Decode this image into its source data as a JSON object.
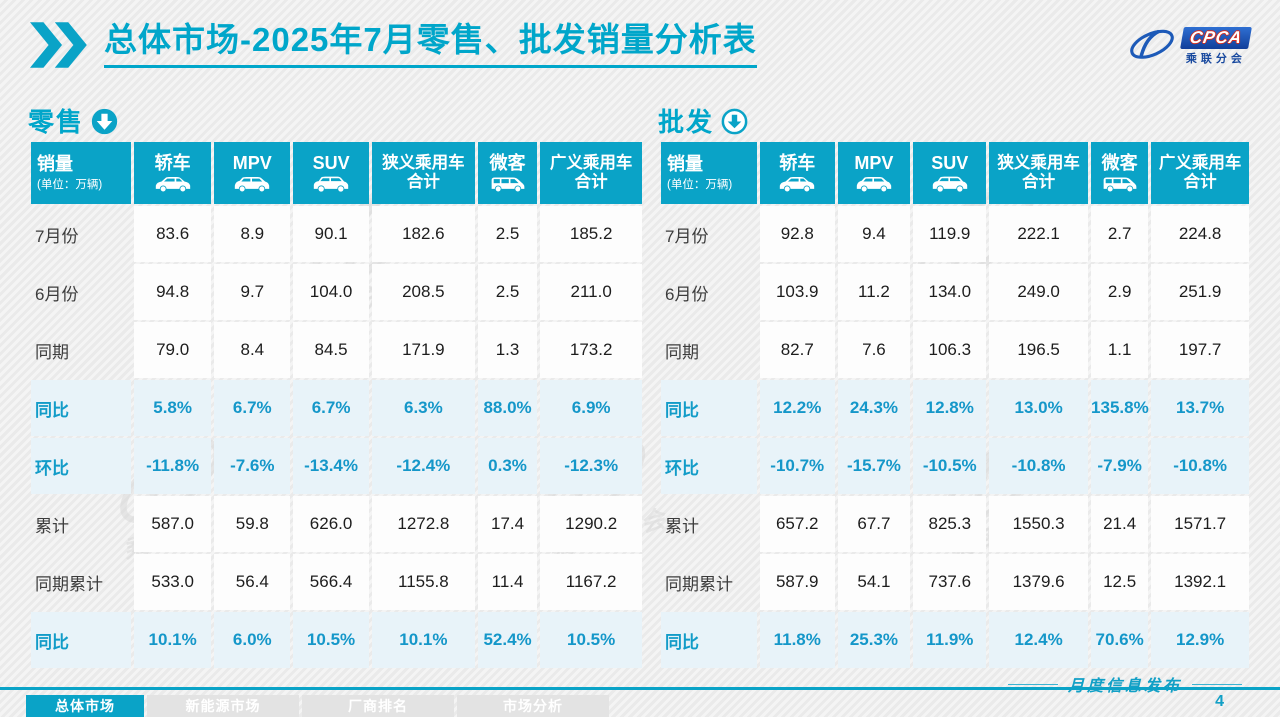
{
  "header": {
    "title_main": "总体市场",
    "title_rest": "-2025年7月零售、批发销量分析表"
  },
  "logo": {
    "acronym": "CPCA",
    "name": "乘联分会"
  },
  "colors": {
    "accent": "#0aa3c7",
    "highlight_bg": "#e8f3f9",
    "highlight_text": "#1597c9",
    "logo_blue": "#17489e"
  },
  "watermark": "乘联分会",
  "tables": {
    "columns": [
      {
        "title": "销量",
        "subtitle": "(单位：万辆)"
      },
      {
        "title": "轿车",
        "icon": "sedan-icon"
      },
      {
        "title": "MPV",
        "icon": "mpv-icon"
      },
      {
        "title": "SUV",
        "icon": "suv-icon"
      },
      {
        "title": "狭义乘用车",
        "title2": "合计"
      },
      {
        "title": "微客",
        "icon": "microvan-icon"
      },
      {
        "title": "广义乘用车",
        "title2": "合计"
      }
    ],
    "retail": {
      "section_label": "零售",
      "arrow_icon": "solid-down-arrow-icon",
      "rows": [
        {
          "label": "7月份",
          "highlight": false,
          "values": [
            "83.6",
            "8.9",
            "90.1",
            "182.6",
            "2.5",
            "185.2"
          ]
        },
        {
          "label": "6月份",
          "highlight": false,
          "values": [
            "94.8",
            "9.7",
            "104.0",
            "208.5",
            "2.5",
            "211.0"
          ]
        },
        {
          "label": "同期",
          "highlight": false,
          "values": [
            "79.0",
            "8.4",
            "84.5",
            "171.9",
            "1.3",
            "173.2"
          ]
        },
        {
          "label": "同比",
          "highlight": true,
          "values": [
            "5.8%",
            "6.7%",
            "6.7%",
            "6.3%",
            "88.0%",
            "6.9%"
          ]
        },
        {
          "label": "环比",
          "highlight": true,
          "values": [
            "-11.8%",
            "-7.6%",
            "-13.4%",
            "-12.4%",
            "0.3%",
            "-12.3%"
          ]
        },
        {
          "label": "累计",
          "highlight": false,
          "values": [
            "587.0",
            "59.8",
            "626.0",
            "1272.8",
            "17.4",
            "1290.2"
          ]
        },
        {
          "label": "同期累计",
          "highlight": false,
          "values": [
            "533.0",
            "56.4",
            "566.4",
            "1155.8",
            "11.4",
            "1167.2"
          ]
        },
        {
          "label": "同比",
          "highlight": true,
          "values": [
            "10.1%",
            "6.0%",
            "10.5%",
            "10.1%",
            "52.4%",
            "10.5%"
          ]
        }
      ]
    },
    "wholesale": {
      "section_label": "批发",
      "arrow_icon": "outline-down-arrow-icon",
      "rows": [
        {
          "label": "7月份",
          "highlight": false,
          "values": [
            "92.8",
            "9.4",
            "119.9",
            "222.1",
            "2.7",
            "224.8"
          ]
        },
        {
          "label": "6月份",
          "highlight": false,
          "values": [
            "103.9",
            "11.2",
            "134.0",
            "249.0",
            "2.9",
            "251.9"
          ]
        },
        {
          "label": "同期",
          "highlight": false,
          "values": [
            "82.7",
            "7.6",
            "106.3",
            "196.5",
            "1.1",
            "197.7"
          ]
        },
        {
          "label": "同比",
          "highlight": true,
          "values": [
            "12.2%",
            "24.3%",
            "12.8%",
            "13.0%",
            "135.8%",
            "13.7%"
          ]
        },
        {
          "label": "环比",
          "highlight": true,
          "values": [
            "-10.7%",
            "-15.7%",
            "-10.5%",
            "-10.8%",
            "-7.9%",
            "-10.8%"
          ]
        },
        {
          "label": "累计",
          "highlight": false,
          "values": [
            "657.2",
            "67.7",
            "825.3",
            "1550.3",
            "21.4",
            "1571.7"
          ]
        },
        {
          "label": "同期累计",
          "highlight": false,
          "values": [
            "587.9",
            "54.1",
            "737.6",
            "1379.6",
            "12.5",
            "1392.1"
          ]
        },
        {
          "label": "同比",
          "highlight": true,
          "values": [
            "11.8%",
            "25.3%",
            "11.9%",
            "12.4%",
            "70.6%",
            "12.9%"
          ]
        }
      ]
    }
  },
  "footer": {
    "tabs": [
      {
        "label": "总体市场",
        "active": true
      },
      {
        "label": "新能源市场",
        "active": false
      },
      {
        "label": "厂商排名",
        "active": false
      },
      {
        "label": "市场分析",
        "active": false
      }
    ],
    "publication": "月度信息发布",
    "page_number": "4"
  }
}
